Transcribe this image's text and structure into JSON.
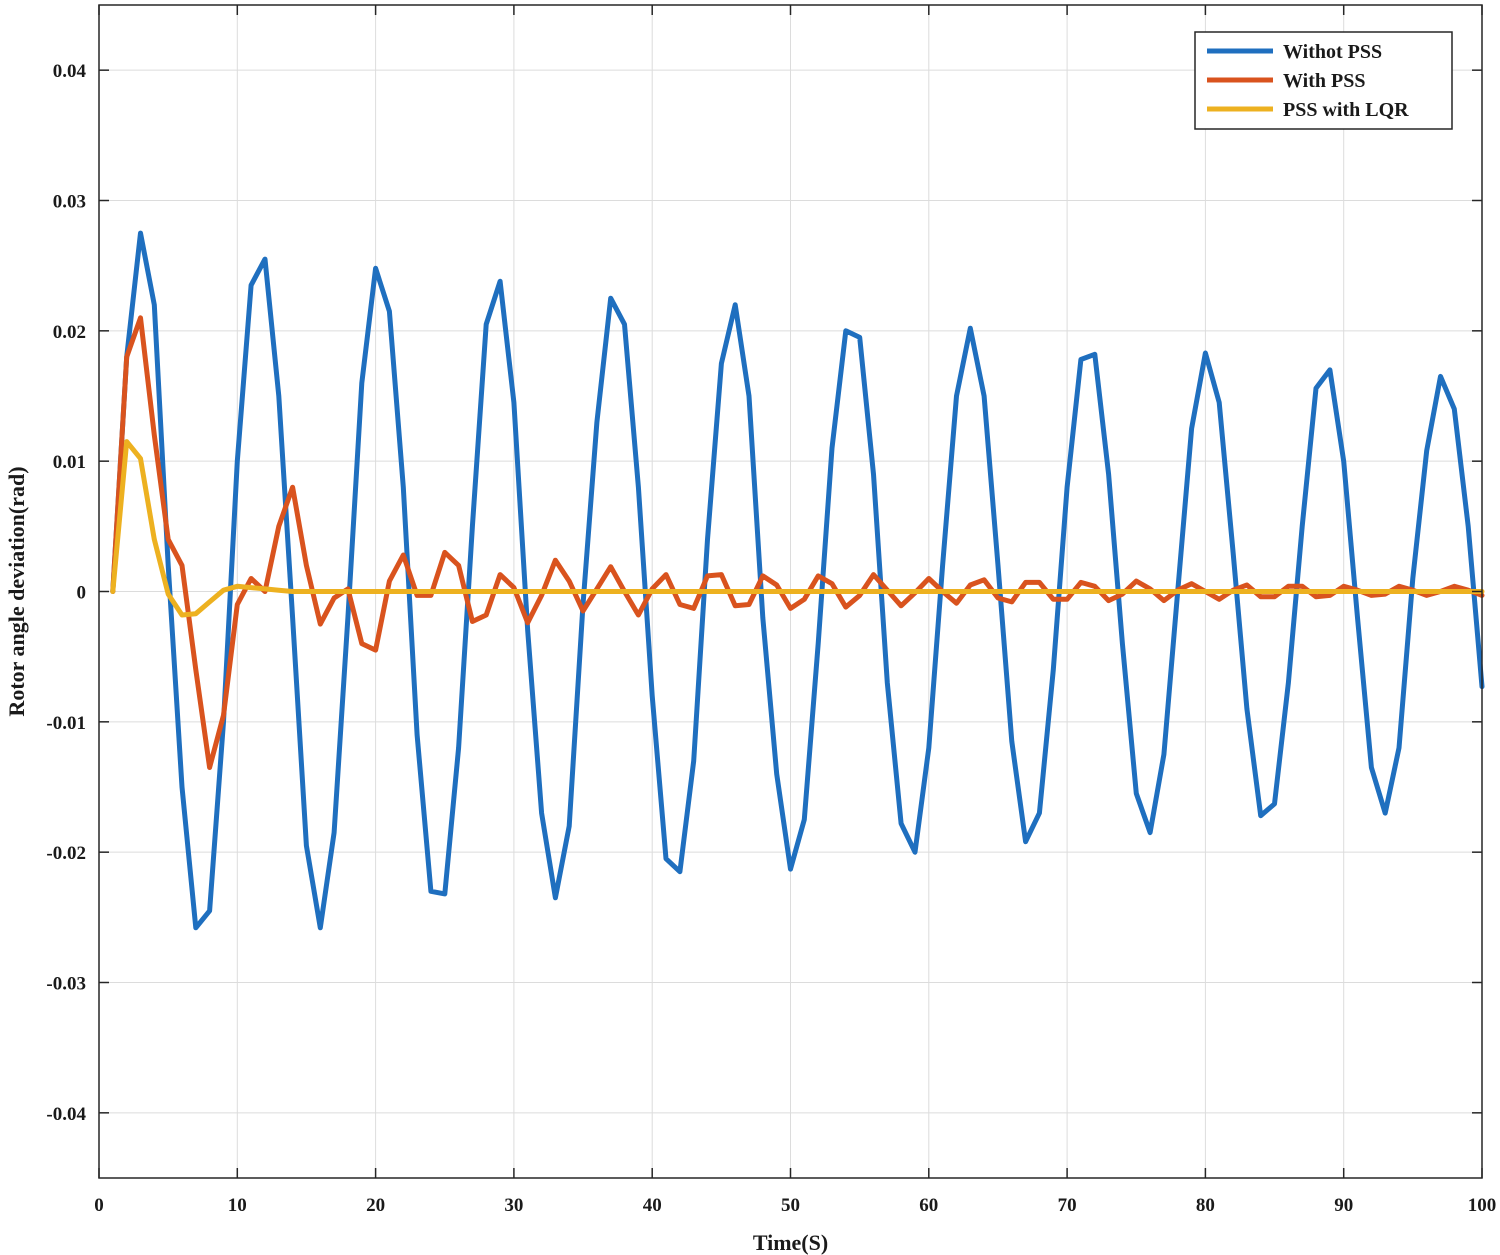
{
  "chart_data": {
    "type": "line",
    "title": "",
    "xlabel": "Time(S)",
    "ylabel": "Rotor angle deviation(rad)",
    "xlim": [
      0,
      100
    ],
    "ylim": [
      -0.045,
      0.045
    ],
    "xticks": [
      0,
      10,
      20,
      30,
      40,
      50,
      60,
      70,
      80,
      90,
      100
    ],
    "yticks": [
      -0.04,
      -0.03,
      -0.02,
      -0.01,
      0,
      0.01,
      0.02,
      0.03,
      0.04
    ],
    "xtick_labels": [
      "0",
      "10",
      "20",
      "30",
      "40",
      "50",
      "60",
      "70",
      "80",
      "90",
      "100"
    ],
    "ytick_labels": [
      "-0.04",
      "-0.03",
      "-0.02",
      "-0.01",
      "0",
      "0.01",
      "0.02",
      "0.03",
      "0.04"
    ],
    "grid": true,
    "legend_position": "top-right",
    "series": [
      {
        "name": "Withot PSS",
        "color": "#1f6fbf",
        "x": [
          1,
          2,
          3,
          4,
          5,
          6,
          7,
          8,
          9,
          10,
          11,
          12,
          13,
          14,
          15,
          16,
          17,
          18,
          19,
          20,
          21,
          22,
          23,
          24,
          25,
          26,
          27,
          28,
          29,
          30,
          31,
          32,
          33,
          34,
          35,
          36,
          37,
          38,
          39,
          40,
          41,
          42,
          43,
          44,
          45,
          46,
          47,
          48,
          49,
          50,
          51,
          52,
          53,
          54,
          55,
          56,
          57,
          58,
          59,
          60,
          61,
          62,
          63,
          64,
          65,
          66,
          67,
          68,
          69,
          70,
          71,
          72,
          73,
          74,
          75,
          76,
          77,
          78,
          79,
          80,
          81,
          82,
          83,
          84,
          85,
          86,
          87,
          88,
          89,
          90,
          91,
          92,
          93,
          94,
          95,
          96,
          97,
          98,
          99,
          100
        ],
        "y": [
          0,
          0.018,
          0.0275,
          0.022,
          0.002,
          -0.015,
          -0.0258,
          -0.0245,
          -0.01,
          0.01,
          0.0235,
          0.0255,
          0.015,
          -0.002,
          -0.0195,
          -0.0258,
          -0.0185,
          -0.002,
          0.016,
          0.0248,
          0.0215,
          0.008,
          -0.011,
          -0.023,
          -0.0232,
          -0.012,
          0.005,
          0.0205,
          0.0238,
          0.0145,
          -0.003,
          -0.017,
          -0.0235,
          -0.018,
          -0.001,
          0.013,
          0.0225,
          0.0205,
          0.008,
          -0.008,
          -0.0205,
          -0.0215,
          -0.013,
          0.004,
          0.0175,
          0.022,
          0.015,
          -0.002,
          -0.014,
          -0.0213,
          -0.0175,
          -0.004,
          0.011,
          0.02,
          0.0195,
          0.009,
          -0.007,
          -0.0178,
          -0.02,
          -0.012,
          0.002,
          0.015,
          0.0202,
          0.015,
          0.002,
          -0.0115,
          -0.0192,
          -0.017,
          -0.006,
          0.008,
          0.0178,
          0.0182,
          0.009,
          -0.004,
          -0.0155,
          -0.0185,
          -0.0125,
          0,
          0.0125,
          0.0183,
          0.0145,
          0.003,
          -0.009,
          -0.0172,
          -0.0163,
          -0.007,
          0.005,
          0.0156,
          0.017,
          0.01,
          -0.002,
          -0.0135,
          -0.017,
          -0.012,
          0.001,
          0.0108,
          0.0165,
          0.014,
          0.005,
          -0.0073
        ]
      },
      {
        "name": "With PSS",
        "color": "#d9531e",
        "x": [
          1,
          2,
          3,
          4,
          5,
          6,
          7,
          8,
          9,
          10,
          11,
          12,
          13,
          14,
          15,
          16,
          17,
          18,
          19,
          20,
          21,
          22,
          23,
          24,
          25,
          26,
          27,
          28,
          29,
          30,
          31,
          32,
          33,
          34,
          35,
          36,
          37,
          38,
          39,
          40,
          41,
          42,
          43,
          44,
          45,
          46,
          47,
          48,
          49,
          50,
          51,
          52,
          53,
          54,
          55,
          56,
          57,
          58,
          59,
          60,
          61,
          62,
          63,
          64,
          65,
          66,
          67,
          68,
          69,
          70,
          71,
          72,
          73,
          74,
          75,
          76,
          77,
          78,
          79,
          80,
          81,
          82,
          83,
          84,
          85,
          86,
          87,
          88,
          89,
          90,
          91,
          92,
          93,
          94,
          95,
          96,
          97,
          98,
          99,
          100
        ],
        "y": [
          0,
          0.018,
          0.021,
          0.012,
          0.004,
          0.002,
          -0.006,
          -0.0135,
          -0.0095,
          -0.001,
          0.001,
          0,
          0.005,
          0.008,
          0.002,
          -0.0025,
          -0.0005,
          0.0002,
          -0.004,
          -0.0045,
          0.0008,
          0.0028,
          -0.0003,
          -0.0003,
          0.003,
          0.002,
          -0.0023,
          -0.0018,
          0.0013,
          0.0003,
          -0.0024,
          -0.0003,
          0.0024,
          0.0008,
          -0.0015,
          0.0002,
          0.0019,
          0,
          -0.0018,
          0.0002,
          0.0013,
          -0.001,
          -0.0013,
          0.0012,
          0.0013,
          -0.0011,
          -0.001,
          0.0012,
          0.0005,
          -0.0013,
          -0.0006,
          0.0012,
          0.0006,
          -0.0012,
          -0.0003,
          0.0013,
          0.0001,
          -0.0011,
          -0.0001,
          0.001,
          0,
          -0.0009,
          0.0005,
          0.0009,
          -0.0005,
          -0.0008,
          0.0007,
          0.0007,
          -0.0006,
          -0.0006,
          0.0007,
          0.0004,
          -0.0007,
          -0.0002,
          0.0008,
          0.0002,
          -0.0007,
          0.0001,
          0.0006,
          0,
          -0.0006,
          0.0001,
          0.0005,
          -0.0004,
          -0.0004,
          0.0004,
          0.0004,
          -0.0004,
          -0.0003,
          0.0004,
          0.0001,
          -0.0003,
          -0.0002,
          0.0004,
          0.0001,
          -0.0003,
          0,
          0.0004,
          0.0001,
          -0.0003
        ]
      },
      {
        "name": "PSS with LQR",
        "color": "#edb120",
        "x": [
          1,
          2,
          3,
          4,
          5,
          6,
          7,
          8,
          9,
          10,
          11,
          12,
          13,
          14,
          15,
          20,
          30,
          40,
          50,
          60,
          70,
          80,
          90,
          100
        ],
        "y": [
          0,
          0.0115,
          0.0102,
          0.004,
          -0.0002,
          -0.0018,
          -0.0017,
          -0.0008,
          0.0001,
          0.0004,
          0.0003,
          0.0002,
          0.0001,
          0,
          0,
          0,
          0,
          0,
          0,
          0,
          0,
          0,
          0,
          0
        ]
      }
    ]
  }
}
